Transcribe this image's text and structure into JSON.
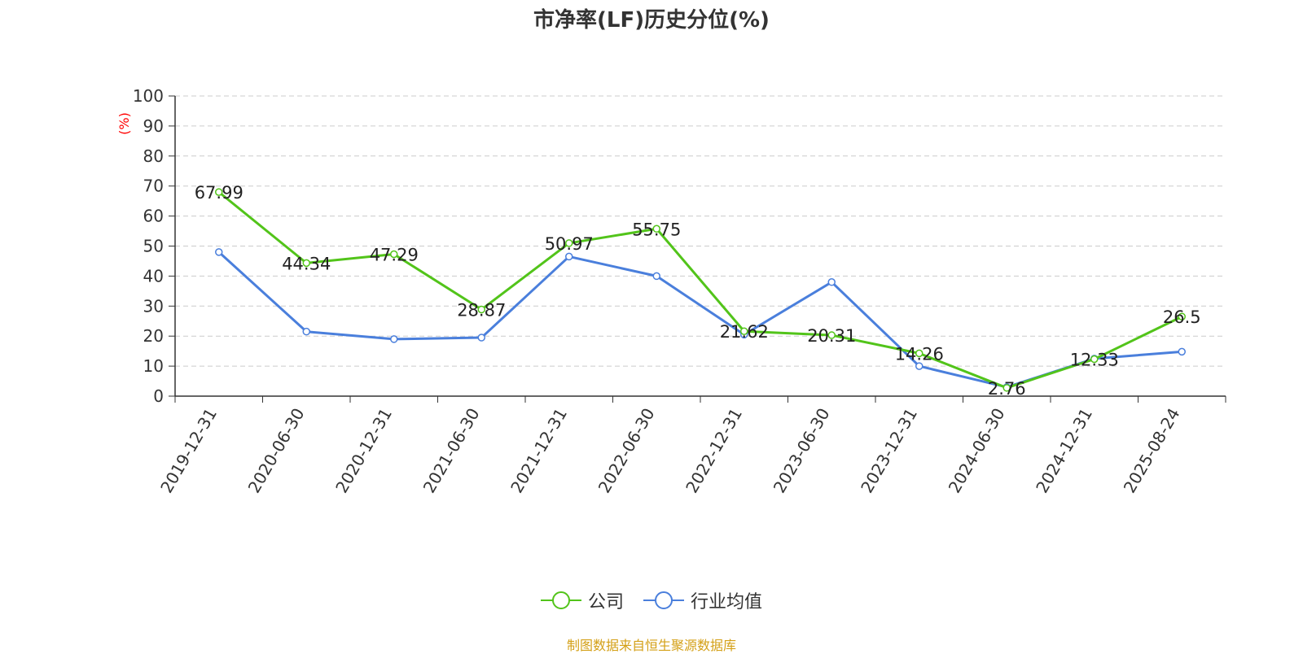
{
  "chart_data": {
    "type": "line",
    "title": "市净率(LF)历史分位(%)",
    "ylabel": "(%)",
    "ylim": [
      0,
      100
    ],
    "yticks": [
      0,
      10,
      20,
      30,
      40,
      50,
      60,
      70,
      80,
      90,
      100
    ],
    "categories": [
      "2019-12-31",
      "2020-06-30",
      "2020-12-31",
      "2021-06-30",
      "2021-12-31",
      "2022-06-30",
      "2022-12-31",
      "2023-06-30",
      "2023-12-31",
      "2024-06-30",
      "2024-12-31",
      "2025-08-24"
    ],
    "series": [
      {
        "name": "公司",
        "color": "#52c41a",
        "values": [
          67.99,
          44.34,
          47.29,
          28.87,
          50.97,
          55.75,
          21.62,
          20.31,
          14.26,
          2.76,
          12.33,
          26.5
        ],
        "labels": [
          "67.99",
          "44.34",
          "47.29",
          "28.87",
          "50.97",
          "55.75",
          "21.62",
          "20.31",
          "14.26",
          "2.76",
          "12.33",
          "26.5"
        ]
      },
      {
        "name": "行业均值",
        "color": "#4a7fdc",
        "values": [
          48,
          21.5,
          19,
          19.5,
          46.5,
          40,
          20.5,
          38,
          10,
          3,
          12.5,
          14.8
        ]
      }
    ],
    "grid": true,
    "legend_position": "bottom"
  },
  "source": "制图数据来自恒生聚源数据库"
}
